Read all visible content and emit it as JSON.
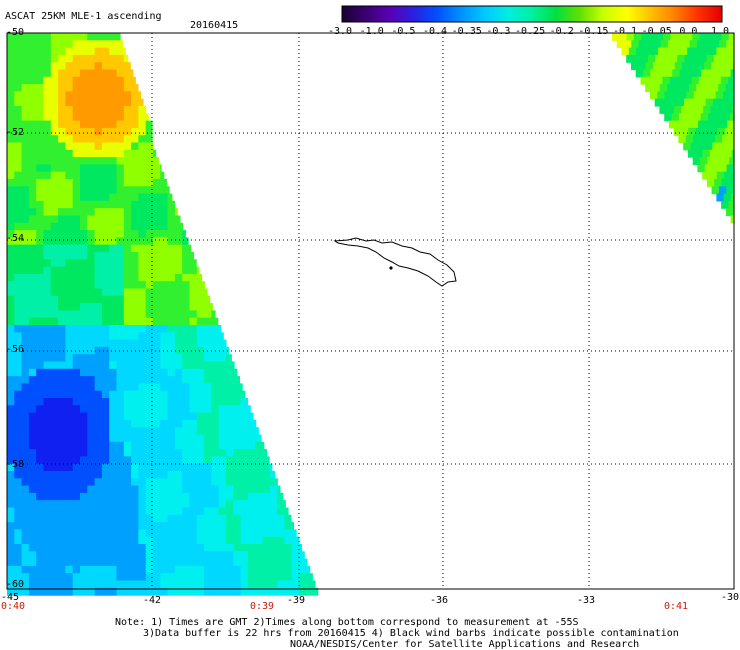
{
  "header": {
    "product": "ASCAT 25KM MLE-1 ascending",
    "date": "20160415"
  },
  "colorbar": {
    "labels": [
      "-3.0",
      "-1.0",
      "-0.5",
      "-0.4",
      "-0.35",
      "-0.3",
      "-0.25",
      "-0.2",
      "-0.15",
      "-0.1",
      "-0.05",
      "0.0",
      "1.0"
    ],
    "colors": [
      "#1a0033",
      "#3a0070",
      "#5a00b4",
      "#2a20e0",
      "#0050ff",
      "#0090ff",
      "#00c8ff",
      "#00eee0",
      "#00f0a0",
      "#00e040",
      "#60e000",
      "#c8ff00",
      "#ffff00",
      "#ffc000",
      "#ff8000",
      "#ff3000",
      "#e00000"
    ]
  },
  "map": {
    "lat_labels": [
      "-50",
      "-52",
      "-54",
      "-56",
      "-58",
      "-60"
    ],
    "lon_labels": [
      "-45",
      "-42",
      "-39",
      "-36",
      "-33",
      "-30"
    ],
    "time_labels": [
      "0:40",
      "0:39",
      "0:41"
    ],
    "value_colors": {
      "orange": "#ff9a00",
      "yellow_orange": "#ffc800",
      "yellow": "#e8ff00",
      "lime": "#90ff00",
      "green": "#30f030",
      "green2": "#00e860",
      "aqua_green": "#00f0a8",
      "cyan": "#00f0f0",
      "cyan2": "#00d8ff",
      "sky": "#00a0ff",
      "blue": "#0050ff",
      "deep_blue": "#1020f0"
    }
  },
  "footer": {
    "note1": "Note: 1) Times are GMT 2)Times along bottom correspond to measurement at -55S",
    "note2": "3)Data buffer is 22 hrs from 20160415 4) Black wind barbs indicate possible contamination",
    "credit": "NOAA/NESDIS/Center for Satellite Applications and Research"
  }
}
